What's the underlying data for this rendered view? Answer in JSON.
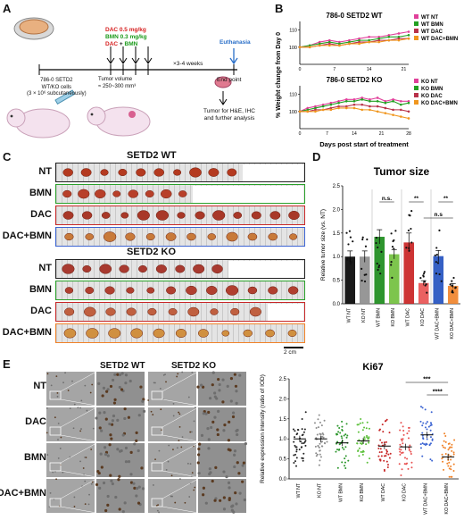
{
  "panels": [
    "A",
    "B",
    "C",
    "D",
    "E"
  ],
  "A": {
    "cell_text": [
      "786-0 SETD2",
      "WT/KO cells",
      "(3 × 10⁶ subcutaneously)"
    ],
    "dosing": {
      "dac": "DAC 0.5 mg/kg",
      "bmn": "BMN 0.3 mg/kg",
      "dac_plus": "DAC",
      "plus": " + ",
      "bmn2": "BMN"
    },
    "tumor_volume": [
      "Tumor volume",
      "≈ 250~300 mm³"
    ],
    "weeks": "×3-4 weeks",
    "euthanasia": "Euthanasia",
    "end_point": "End point",
    "analysis": [
      "Tumor for H&E, IHC",
      "and further analysis"
    ]
  },
  "B": {
    "ylabel": "% Weight change from Day 0",
    "xlabel": "Days post start of treatment",
    "colors": {
      "NT": "#e0409a",
      "BMN": "#22a022",
      "DAC": "#b8324a",
      "DACBMN": "#f0961e"
    },
    "wt": {
      "title": "786-0 SETD2 WT",
      "legend": [
        "WT NT",
        "WT BMN",
        "WT DAC",
        "WT DAC+BMN"
      ],
      "yticks": [
        "100",
        "110"
      ],
      "xticks": [
        "0",
        "7",
        "14",
        "21"
      ],
      "x": [
        0,
        2,
        4,
        6,
        8,
        10,
        12,
        14,
        16,
        18,
        20,
        22
      ],
      "series": [
        [
          100,
          101,
          103,
          104,
          103,
          104,
          105,
          106,
          106,
          107,
          108,
          109
        ],
        [
          100,
          101,
          102,
          103,
          102,
          103,
          104,
          104,
          105,
          106,
          106,
          107
        ],
        [
          100,
          100,
          101,
          102,
          101,
          102,
          103,
          103,
          104,
          104,
          105,
          105
        ],
        [
          100,
          100,
          101,
          101,
          101,
          102,
          102,
          103,
          103,
          104,
          104,
          105
        ]
      ]
    },
    "ko": {
      "title": "786-0 SETD2 KO",
      "legend": [
        "KO NT",
        "KO BMN",
        "KO DAC",
        "KO DAC+BMN"
      ],
      "yticks": [
        "100",
        "110"
      ],
      "xticks": [
        "0",
        "7",
        "14",
        "21",
        "28"
      ],
      "x": [
        0,
        2,
        4,
        6,
        8,
        10,
        12,
        14,
        16,
        18,
        20,
        22,
        24,
        26,
        28
      ],
      "series": [
        [
          100,
          102,
          103,
          104,
          105,
          106,
          107,
          107,
          108,
          107,
          108,
          106,
          107,
          106,
          106
        ],
        [
          100,
          101,
          102,
          103,
          104,
          105,
          106,
          106,
          107,
          106,
          106,
          105,
          106,
          104,
          105
        ],
        [
          100,
          100,
          101,
          101,
          102,
          103,
          103,
          104,
          104,
          103,
          103,
          102,
          101,
          101,
          100
        ],
        [
          100,
          100,
          100,
          101,
          101,
          102,
          102,
          102,
          101,
          101,
          100,
          99,
          98,
          97,
          96
        ]
      ]
    }
  },
  "C": {
    "wt_title": "SETD2 WT",
    "ko_title": "SETD2 KO",
    "wt_rows": [
      "NT",
      "BMN",
      "DAC",
      "DAC+BMN"
    ],
    "ko_rows": [
      "NT",
      "BMN",
      "DAC",
      "DAC+BMN"
    ],
    "scale_bar": "2 cm"
  },
  "D": {
    "title": "Tumor size",
    "ylabel": "Relative tumor size (vs. NT)",
    "yticks": [
      "0.0",
      "0.5",
      "1.0",
      "1.5",
      "2.0",
      "2.5"
    ],
    "categories": [
      "WT NT",
      "KO NT",
      "WT BMN",
      "KO BMN",
      "WT DAC",
      "KO DAC",
      "WT DAC+BMN",
      "KO DAC+BMN"
    ],
    "means": [
      1.0,
      1.0,
      1.42,
      1.05,
      1.3,
      0.44,
      1.01,
      0.38
    ],
    "sem": [
      0.12,
      0.12,
      0.15,
      0.1,
      0.2,
      0.05,
      0.12,
      0.05
    ],
    "colors": [
      "#000000",
      "#8c8c8c",
      "#178a17",
      "#6fbf3a",
      "#c81e1e",
      "#e85050",
      "#1f4fbf",
      "#f08228"
    ],
    "sig": [
      "n.s.",
      "**",
      "**",
      "n.s"
    ]
  },
  "E": {
    "wt_title": "SETD2 WT",
    "ko_title": "SETD2 KO",
    "rows": [
      "NT",
      "DAC",
      "BMN",
      "DAC+BMN"
    ],
    "title": "Ki67",
    "ylabel": "Relative expression intensity (ratio of IOD)",
    "yticks": [
      "0.0",
      "0.5",
      "1.0",
      "1.5",
      "2.0",
      "2.5"
    ],
    "categories": [
      "WT NT",
      "KO NT",
      "WT BMN",
      "KO BMN",
      "WT DAC",
      "KO DAC",
      "WT DAC+BMN",
      "KO DAC+BMN"
    ],
    "means": [
      1.0,
      1.0,
      0.9,
      0.95,
      0.82,
      0.8,
      1.1,
      0.55
    ],
    "colors": [
      "#222222",
      "#8c8c8c",
      "#2a962a",
      "#5cc03a",
      "#c82828",
      "#e85050",
      "#3c64d2",
      "#f08228"
    ],
    "sig": [
      "***",
      "****"
    ]
  }
}
